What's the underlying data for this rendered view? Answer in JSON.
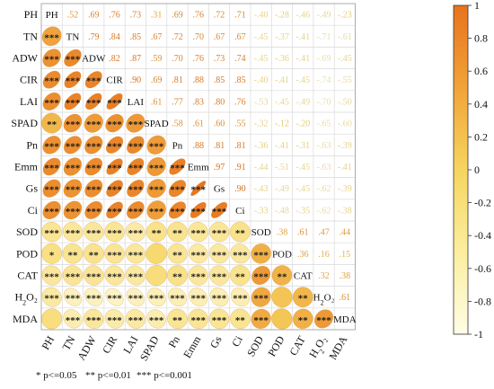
{
  "chart_data": {
    "type": "heatmap",
    "title": "",
    "variables": [
      {
        "label": "PH"
      },
      {
        "label": "TN"
      },
      {
        "label": "ADW"
      },
      {
        "label": "CIR"
      },
      {
        "label": "LAI"
      },
      {
        "label": "SPAD"
      },
      {
        "label": "Pn"
      },
      {
        "label": "Emm"
      },
      {
        "label": "Gs"
      },
      {
        "label": "Ci"
      },
      {
        "label": "SOD"
      },
      {
        "label": "POD"
      },
      {
        "label": "CAT"
      },
      {
        "label": "H₂O₂"
      },
      {
        "label": "MDA"
      }
    ],
    "correlation_matrix": [
      [
        1,
        0.52,
        0.69,
        0.76,
        0.73,
        0.31,
        0.69,
        0.76,
        0.72,
        0.71,
        -0.4,
        -0.28,
        -0.46,
        -0.49,
        -0.23
      ],
      [
        0.52,
        1,
        0.79,
        0.84,
        0.85,
        0.67,
        0.72,
        0.7,
        0.67,
        0.67,
        -0.45,
        -0.37,
        -0.41,
        -0.71,
        -0.61
      ],
      [
        0.69,
        0.79,
        1,
        0.82,
        0.87,
        0.59,
        0.7,
        0.76,
        0.73,
        0.74,
        -0.45,
        -0.36,
        -0.41,
        -0.69,
        -0.45
      ],
      [
        0.76,
        0.84,
        0.82,
        1,
        0.9,
        0.69,
        0.81,
        0.88,
        0.85,
        0.85,
        -0.4,
        -0.41,
        -0.45,
        -0.74,
        -0.55
      ],
      [
        0.73,
        0.85,
        0.87,
        0.9,
        1,
        0.61,
        0.77,
        0.83,
        0.8,
        0.76,
        -0.53,
        -0.45,
        -0.49,
        -0.7,
        -0.5
      ],
      [
        0.31,
        0.67,
        0.59,
        0.69,
        0.61,
        1,
        0.58,
        0.61,
        0.6,
        0.55,
        -0.32,
        -0.12,
        -0.2,
        -0.65,
        -0.6
      ],
      [
        0.69,
        0.72,
        0.7,
        0.81,
        0.77,
        0.58,
        1,
        0.88,
        0.81,
        0.81,
        -0.36,
        -0.41,
        -0.31,
        -0.63,
        -0.39
      ],
      [
        0.76,
        0.7,
        0.76,
        0.88,
        0.83,
        0.61,
        0.88,
        1,
        0.97,
        0.91,
        -0.44,
        -0.51,
        -0.45,
        -0.63,
        -0.41
      ],
      [
        0.72,
        0.67,
        0.73,
        0.85,
        0.8,
        0.6,
        0.81,
        0.97,
        1,
        0.9,
        -0.43,
        -0.49,
        -0.45,
        -0.62,
        -0.39
      ],
      [
        0.71,
        0.67,
        0.74,
        0.85,
        0.76,
        0.55,
        0.81,
        0.91,
        0.9,
        1,
        -0.33,
        -0.48,
        -0.35,
        -0.62,
        -0.38
      ],
      [
        -0.4,
        -0.45,
        -0.45,
        -0.4,
        -0.53,
        -0.32,
        -0.36,
        -0.44,
        -0.43,
        -0.33,
        1,
        0.38,
        0.61,
        0.47,
        0.44
      ],
      [
        -0.28,
        -0.37,
        -0.36,
        -0.41,
        -0.45,
        -0.12,
        -0.41,
        -0.51,
        -0.49,
        -0.48,
        0.38,
        1,
        0.36,
        0.16,
        0.15
      ],
      [
        -0.46,
        -0.41,
        -0.41,
        -0.45,
        -0.49,
        -0.2,
        -0.31,
        -0.45,
        -0.45,
        -0.35,
        0.61,
        0.36,
        1,
        0.32,
        0.38
      ],
      [
        -0.49,
        -0.71,
        -0.69,
        -0.74,
        -0.7,
        -0.65,
        -0.63,
        -0.63,
        -0.62,
        -0.62,
        0.47,
        0.16,
        0.32,
        1,
        0.61
      ],
      [
        -0.23,
        -0.61,
        -0.45,
        -0.55,
        -0.5,
        -0.6,
        -0.39,
        -0.41,
        -0.39,
        -0.38,
        0.44,
        0.15,
        0.38,
        0.61,
        1
      ]
    ],
    "significance_lower": [
      [
        "",
        "",
        "",
        "",
        "",
        "",
        "",
        "",
        "",
        "",
        "",
        "",
        "",
        "",
        ""
      ],
      [
        "***",
        "",
        "",
        "",
        "",
        "",
        "",
        "",
        "",
        "",
        "",
        "",
        "",
        "",
        ""
      ],
      [
        "***",
        "***",
        "",
        "",
        "",
        "",
        "",
        "",
        "",
        "",
        "",
        "",
        "",
        "",
        ""
      ],
      [
        "***",
        "***",
        "***",
        "",
        "",
        "",
        "",
        "",
        "",
        "",
        "",
        "",
        "",
        "",
        ""
      ],
      [
        "***",
        "***",
        "***",
        "***",
        "",
        "",
        "",
        "",
        "",
        "",
        "",
        "",
        "",
        "",
        ""
      ],
      [
        "**",
        "***",
        "***",
        "***",
        "***",
        "",
        "",
        "",
        "",
        "",
        "",
        "",
        "",
        "",
        ""
      ],
      [
        "***",
        "***",
        "***",
        "***",
        "***",
        "***",
        "",
        "",
        "",
        "",
        "",
        "",
        "",
        "",
        ""
      ],
      [
        "***",
        "***",
        "***",
        "***",
        "***",
        "***",
        "***",
        "",
        "",
        "",
        "",
        "",
        "",
        "",
        ""
      ],
      [
        "***",
        "***",
        "***",
        "***",
        "***",
        "***",
        "***",
        "***",
        "",
        "",
        "",
        "",
        "",
        "",
        ""
      ],
      [
        "***",
        "***",
        "***",
        "***",
        "***",
        "***",
        "***",
        "***",
        "***",
        "",
        "",
        "",
        "",
        "",
        ""
      ],
      [
        "***",
        "***",
        "***",
        "***",
        "***",
        "**",
        "**",
        "***",
        "***",
        "**",
        "",
        "",
        "",
        "",
        ""
      ],
      [
        "*",
        "**",
        "**",
        "***",
        "***",
        "",
        "**",
        "***",
        "***",
        "***",
        "***",
        "",
        "",
        "",
        ""
      ],
      [
        "***",
        "***",
        "***",
        "***",
        "***",
        "",
        "**",
        "***",
        "***",
        "**",
        "***",
        "**",
        "",
        "",
        ""
      ],
      [
        "***",
        "***",
        "***",
        "***",
        "***",
        "***",
        "***",
        "***",
        "***",
        "***",
        "***",
        "",
        "**",
        "",
        ""
      ],
      [
        "",
        "***",
        "***",
        "***",
        "***",
        "***",
        "**",
        "***",
        "***",
        "**",
        "***",
        "",
        "**",
        "***",
        ""
      ]
    ],
    "colorbar": {
      "range": [
        -1,
        1
      ],
      "ticks": [
        1,
        0.8,
        0.6,
        0.4,
        0.2,
        0,
        -0.2,
        -0.4,
        -0.6,
        -0.8,
        -1
      ],
      "tick_labels": [
        "1",
        "0.8",
        "0.6",
        "0.4",
        "0.2",
        "0",
        "-0.2",
        "-0.4",
        "-0.6",
        "-0.8",
        "-1"
      ],
      "placement": "right",
      "color_high": "#e8731d",
      "color_mid": "#f6d55f",
      "color_low": "#fffde6"
    },
    "significance_note": [
      {
        "text": "* p<=0.05"
      },
      {
        "text": "** p<=0.01"
      },
      {
        "text": "*** p<=0.001"
      }
    ]
  }
}
